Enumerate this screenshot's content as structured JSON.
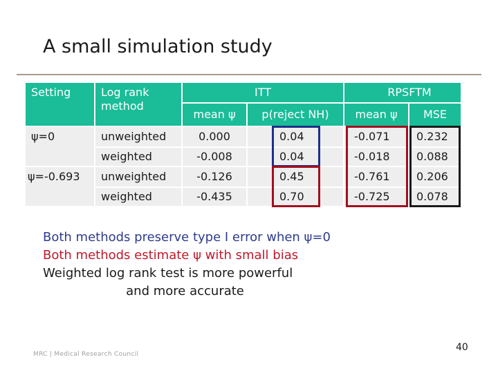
{
  "slide": {
    "title": "A small simulation study",
    "page_number": "40",
    "footer_logo": "MRC | Medical Research Council"
  },
  "table": {
    "headers": {
      "setting": "Setting",
      "method": "Log rank method",
      "itt": "ITT",
      "rpsftm": "RPSFTM",
      "itt_mean": "mean ψ",
      "itt_p": "p(reject NH)",
      "rps_mean": "mean ψ",
      "rps_mse": "MSE"
    },
    "rows": [
      {
        "setting": "ψ=0",
        "method": "unweighted",
        "itt_mean": "0.000",
        "itt_p": "0.04",
        "rps_mean": "-0.071",
        "rps_mse": "0.232"
      },
      {
        "setting": "",
        "method": "weighted",
        "itt_mean": "-0.008",
        "itt_p": "0.04",
        "rps_mean": "-0.018",
        "rps_mse": "0.088"
      },
      {
        "setting": "ψ=-0.693",
        "method": "unweighted",
        "itt_mean": "-0.126",
        "itt_p": "0.45",
        "rps_mean": "-0.761",
        "rps_mse": "0.206"
      },
      {
        "setting": "",
        "method": "weighted",
        "itt_mean": "-0.435",
        "itt_p": "0.70",
        "rps_mean": "-0.725",
        "rps_mse": "0.078"
      }
    ]
  },
  "notes": {
    "line1": "Both methods preserve type I error when ψ=0",
    "line2": "Both methods estimate ψ with small bias",
    "line3": "Weighted log rank test is more powerful",
    "line4": "                     and more accurate"
  },
  "colors": {
    "header_teal": "#1bbc98",
    "row_gray": "#eeeeee",
    "note_blue": "#2e3b8c",
    "note_red": "#c0182a",
    "box_blue": "#1f2f8a",
    "box_red": "#a01020"
  }
}
